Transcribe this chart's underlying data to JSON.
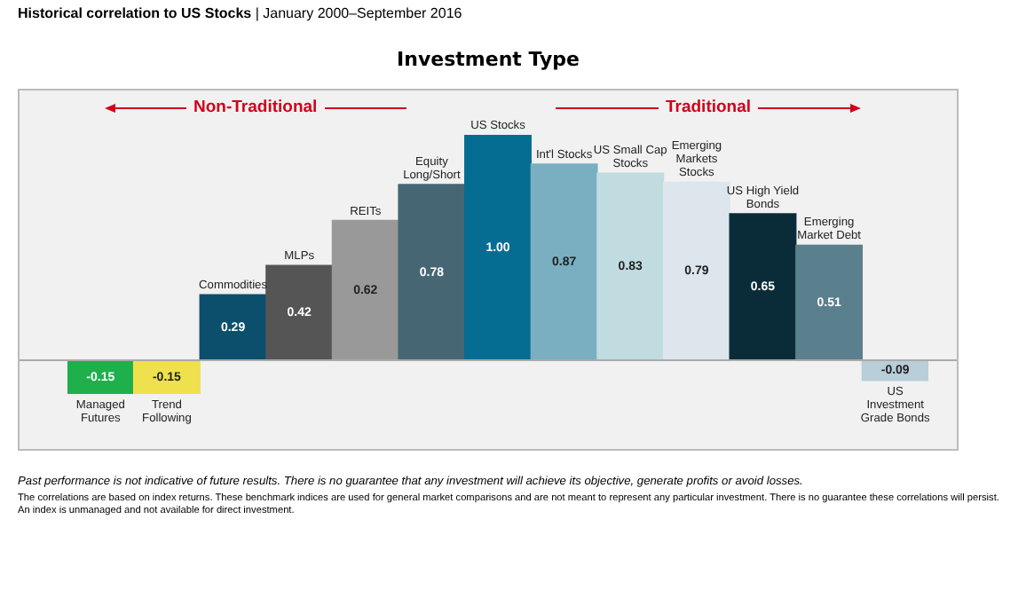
{
  "chart_data": {
    "type": "bar",
    "title": "Historical correlation to US Stocks",
    "subtitle": "| January 2000–September 2016",
    "xlabel": "Investment Type",
    "categories": [
      "Managed Futures",
      "Trend Following",
      "Commodities",
      "MLPs",
      "REITs",
      "Equity Long/Short",
      "US Stocks",
      "Int'l Stocks",
      "US Small Cap Stocks",
      "Emerging Markets Stocks",
      "US High Yield Bonds",
      "Emerging Market Debt",
      "US Investment Grade Bonds"
    ],
    "values": [
      -0.15,
      -0.15,
      0.29,
      0.42,
      0.62,
      0.78,
      1.0,
      0.87,
      0.83,
      0.79,
      0.65,
      0.51,
      -0.09
    ],
    "value_labels": [
      "-0.15",
      "-0.15",
      "0.29",
      "0.42",
      "0.62",
      "0.78",
      "1.00",
      "0.87",
      "0.83",
      "0.79",
      "0.65",
      "0.51",
      "-0.09"
    ],
    "colors": [
      "#1fb04b",
      "#efe04e",
      "#0b4f6c",
      "#555555",
      "#999999",
      "#476673",
      "#066d92",
      "#79afc1",
      "#c0dce0",
      "#dce6ec",
      "#0a2c38",
      "#5a7f8d",
      "#b8ced8"
    ],
    "legend": false,
    "annotations": [
      "Non-Traditional",
      "Traditional",
      "Past performance is not indicative of future results. There is no guarantee that any investment will achieve its objective, generate profits or avoid losses.",
      "The correlations are based on index returns. These benchmark indices are used for general market comparisons and are not meant to represent any particular investment. There is no guarantee these correlations will persist. An index is unmanaged and not available for direct investment."
    ]
  }
}
